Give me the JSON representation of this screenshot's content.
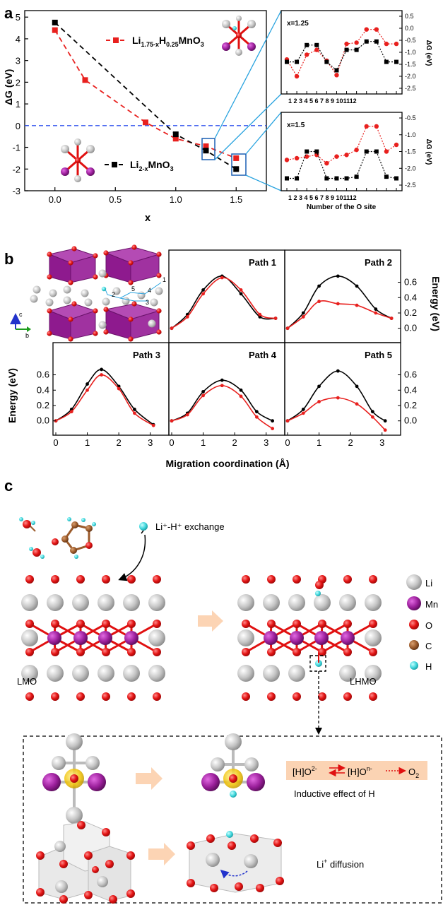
{
  "panels": {
    "a": {
      "letter": "a",
      "chart_data": [
        {
          "type": "line",
          "xlabel": "x",
          "ylabel": "ΔG (eV)",
          "xlim": [
            -0.25,
            1.75
          ],
          "ylim": [
            -3,
            5.3
          ],
          "xticks": [
            "0.0",
            "0.5",
            "1.0",
            "1.5"
          ],
          "yticks": [
            "-3",
            "-2",
            "-1",
            "0",
            "1",
            "2",
            "3",
            "4",
            "5"
          ],
          "reference_line": 0,
          "series": [
            {
              "name": "Li1.75-xH0.25MnO3",
              "color": "#e8201e",
              "x": [
                0,
                0.25,
                0.75,
                1.0,
                1.25,
                1.5
              ],
              "values": [
                4.4,
                2.1,
                0.15,
                -0.6,
                -0.95,
                -1.5
              ]
            },
            {
              "name": "Li2-xMnO3",
              "color": "#000000",
              "x": [
                0,
                1.0,
                1.25,
                1.5
              ],
              "values": [
                4.75,
                -0.4,
                -1.15,
                -2.0
              ]
            }
          ]
        },
        {
          "type": "line",
          "title": "x=1.25",
          "xlabel": "Number of the O site",
          "ylabel": "ΔG (eV)",
          "ylim": [
            -2.5,
            0.5
          ],
          "yticks": [
            "0.5",
            "0.0",
            "-0.5",
            "-1.0",
            "-1.5",
            "-2.0",
            "-2.5"
          ],
          "categories": [
            "1",
            "2",
            "3",
            "4",
            "5",
            "6",
            "7",
            "8",
            "9",
            "10",
            "11",
            "12"
          ],
          "series": [
            {
              "name": "red",
              "color": "#e8201e",
              "values": [
                -1.3,
                -2.0,
                -1.1,
                -0.9,
                -1.35,
                -1.95,
                -0.65,
                -0.6,
                -0.05,
                -0.05,
                -0.65,
                -0.65
              ]
            },
            {
              "name": "black",
              "color": "#000000",
              "values": [
                -1.4,
                -1.4,
                -0.7,
                -0.7,
                -1.4,
                -1.75,
                -0.9,
                -0.9,
                -0.55,
                -0.55,
                -1.4,
                -1.4
              ]
            }
          ]
        },
        {
          "type": "line",
          "title": "x=1.5",
          "xlabel": "Number of the O site",
          "ylabel": "ΔG (eV)",
          "ylim": [
            -2.5,
            -0.5
          ],
          "yticks": [
            "-0.5",
            "-1.0",
            "-1.5",
            "-2.0",
            "-2.5"
          ],
          "categories": [
            "1",
            "2",
            "3",
            "4",
            "5",
            "6",
            "7",
            "8",
            "9",
            "10",
            "11",
            "12"
          ],
          "series": [
            {
              "name": "red",
              "color": "#e8201e",
              "values": [
                -1.75,
                -1.7,
                -1.65,
                -1.6,
                -1.85,
                -1.65,
                -1.6,
                -1.45,
                -0.75,
                -0.75,
                -1.5,
                -1.3
              ]
            },
            {
              "name": "black",
              "color": "#000000",
              "values": [
                -2.3,
                -2.3,
                -1.5,
                -1.5,
                -2.3,
                -2.3,
                -2.3,
                -2.25,
                -1.5,
                -1.5,
                -2.25,
                -2.3
              ]
            }
          ]
        }
      ],
      "legend": {
        "li_h": {
          "main": "Li",
          "sub1": "1.75-x",
          "mid": "H",
          "sub2": "0.25",
          "tail": "MnO",
          "sub3": "3"
        },
        "li": {
          "main": "Li",
          "sub1": "2-x",
          "tail": "MnO",
          "sub3": "3"
        }
      },
      "inset_xtick_labels": "1 2 3 4 5 6 7 8 9 101112"
    },
    "b": {
      "letter": "b",
      "axis_c": "c",
      "axis_b": "b",
      "struct_labels": [
        "1",
        "2",
        "3",
        "4",
        "5"
      ],
      "xlabel": "Migration coordination (Å)",
      "ylabel_left": "Energy (eV)",
      "ylabel_right": "Energy (eV)",
      "chart_data": [
        {
          "type": "line",
          "title": "Path 1",
          "series": [
            {
              "color": "#000000",
              "x": [
                0,
                0.5,
                1.0,
                1.6,
                2.2,
                2.8,
                3.3
              ],
              "values": [
                0.0,
                0.18,
                0.5,
                0.68,
                0.45,
                0.15,
                0.13
              ]
            },
            {
              "color": "#e8201e",
              "x": [
                0,
                0.5,
                1.0,
                1.6,
                2.2,
                2.8,
                3.3
              ],
              "values": [
                0.0,
                0.15,
                0.45,
                0.66,
                0.5,
                0.18,
                0.13
              ]
            }
          ]
        },
        {
          "type": "line",
          "title": "Path 2",
          "series": [
            {
              "color": "#000000",
              "x": [
                0,
                0.5,
                1.0,
                1.6,
                2.2,
                2.8,
                3.3
              ],
              "values": [
                0.0,
                0.2,
                0.55,
                0.68,
                0.55,
                0.25,
                0.13
              ]
            },
            {
              "color": "#e8201e",
              "x": [
                0,
                0.5,
                1.0,
                1.6,
                2.2,
                2.8,
                3.3
              ],
              "values": [
                0.0,
                0.15,
                0.35,
                0.32,
                0.3,
                0.2,
                0.13
              ]
            }
          ]
        },
        {
          "type": "line",
          "title": "Path 3",
          "series": [
            {
              "color": "#000000",
              "x": [
                0,
                0.5,
                1.0,
                1.45,
                2.0,
                2.5,
                3.1
              ],
              "values": [
                0.0,
                0.15,
                0.48,
                0.67,
                0.45,
                0.15,
                -0.05
              ]
            },
            {
              "color": "#e8201e",
              "x": [
                0,
                0.5,
                1.0,
                1.45,
                2.0,
                2.5,
                3.1
              ],
              "values": [
                0.0,
                0.12,
                0.4,
                0.6,
                0.42,
                0.1,
                -0.06
              ]
            }
          ]
        },
        {
          "type": "line",
          "title": "Path 4",
          "series": [
            {
              "color": "#000000",
              "x": [
                0,
                0.5,
                1.0,
                1.6,
                2.2,
                2.7,
                3.2
              ],
              "values": [
                0.0,
                0.1,
                0.38,
                0.53,
                0.4,
                0.12,
                0.0
              ]
            },
            {
              "color": "#e8201e",
              "x": [
                0,
                0.5,
                1.0,
                1.6,
                2.2,
                2.7,
                3.2
              ],
              "values": [
                0.0,
                0.08,
                0.33,
                0.46,
                0.32,
                0.05,
                -0.1
              ]
            }
          ]
        },
        {
          "type": "line",
          "title": "Path 5",
          "series": [
            {
              "color": "#000000",
              "x": [
                0,
                0.5,
                1.0,
                1.6,
                2.2,
                2.7,
                3.1
              ],
              "values": [
                0.0,
                0.15,
                0.45,
                0.65,
                0.45,
                0.12,
                0.0
              ]
            },
            {
              "color": "#e8201e",
              "x": [
                0,
                0.5,
                1.0,
                1.6,
                2.2,
                2.7,
                3.1
              ],
              "values": [
                0.0,
                0.1,
                0.25,
                0.3,
                0.22,
                0.05,
                -0.12
              ]
            }
          ]
        }
      ],
      "xticks": [
        "0",
        "1",
        "2",
        "3"
      ],
      "yticks": [
        "0.0",
        "0.2",
        "0.4",
        "0.6"
      ]
    },
    "c": {
      "letter": "c",
      "exchange_label": "Li⁺-H⁺ exchange",
      "left_label": "LMO",
      "right_label": "LHMO",
      "legend": [
        {
          "label": "Li",
          "color": "#bdbdbd"
        },
        {
          "label": "Mn",
          "color": "#8e1a8e"
        },
        {
          "label": "O",
          "color": "#e01010"
        },
        {
          "label": "C",
          "color": "#9b5a2a"
        },
        {
          "label": "H",
          "color": "#3fd6dc"
        }
      ],
      "box": {
        "eq_a": "[H]O",
        "eq_a_sup": "2-",
        "eq_b": "[H]O",
        "eq_b_sup": "n-",
        "eq_c": "O",
        "eq_c_sub": "2",
        "inductive": "Inductive effect of H",
        "diffusion": "Li",
        "diffusion_sup": "+",
        "diffusion_tail": " diffusion"
      }
    }
  }
}
